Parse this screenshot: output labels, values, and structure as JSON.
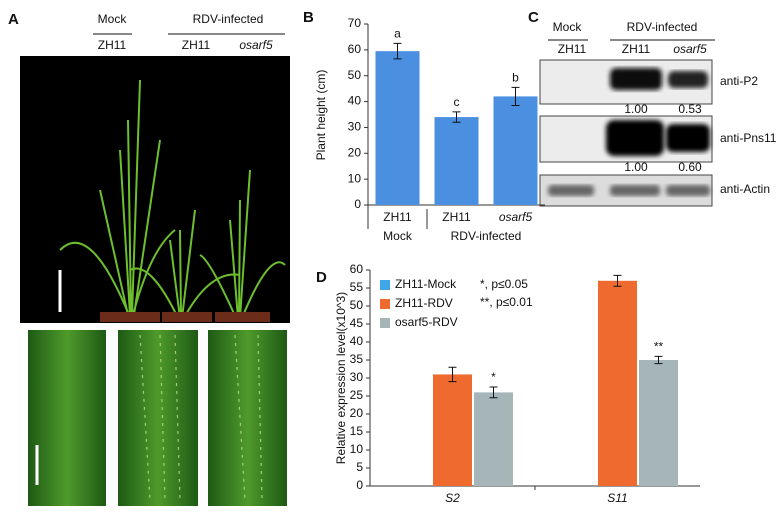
{
  "panel_a": {
    "panel_label": "A",
    "group_labels": [
      "Mock",
      "RDV-infected"
    ],
    "sample_labels": [
      "ZH11",
      "ZH11",
      "osarf5"
    ]
  },
  "panel_c": {
    "panel_label": "C",
    "group_labels": [
      "Mock",
      "RDV-infected"
    ],
    "sample_labels": [
      "ZH11",
      "ZH11",
      "osarf5"
    ],
    "blots": [
      {
        "label": "anti-P2",
        "ratios": [
          "1.00",
          "0.53"
        ]
      },
      {
        "label": "anti-Pns11",
        "ratios": [
          "1.00",
          "0.60"
        ]
      },
      {
        "label": "anti-Actin"
      }
    ]
  },
  "chart_data": [
    {
      "type": "bar",
      "panel_label": "B",
      "y_label": "Plant height (cm)",
      "categories": [
        "ZH11",
        "ZH11",
        "osarf5"
      ],
      "group_labels": [
        "Mock",
        "RDV-infected"
      ],
      "values": [
        59.5,
        34,
        42
      ],
      "errors": [
        3,
        2,
        3.5
      ],
      "significance": [
        "a",
        "c",
        "b"
      ],
      "color": "#4a8fe0",
      "ylim": [
        0,
        70
      ],
      "yticks": [
        0,
        10,
        20,
        30,
        40,
        50,
        60,
        70
      ]
    },
    {
      "type": "bar",
      "panel_label": "D",
      "y_label": "Relative expression level(x10^3)",
      "categories": [
        "S2",
        "S11"
      ],
      "series": [
        {
          "name": "ZH11-Mock",
          "color": "#3fa7e8",
          "values": [
            null,
            null
          ]
        },
        {
          "name": "ZH11-RDV",
          "color": "#ee6a2f",
          "values": [
            31,
            57
          ],
          "errors": [
            2,
            1.5
          ]
        },
        {
          "name": "osarf5-RDV",
          "color": "#a5b5b8",
          "values": [
            26,
            35
          ],
          "errors": [
            1.5,
            1
          ],
          "significance": [
            "*",
            "**"
          ]
        }
      ],
      "notes": [
        "*, p≤0.05",
        "**, p≤0.01"
      ],
      "ylim": [
        0,
        60
      ],
      "yticks": [
        0,
        5,
        10,
        15,
        20,
        25,
        30,
        35,
        40,
        45,
        50,
        55,
        60
      ]
    }
  ]
}
